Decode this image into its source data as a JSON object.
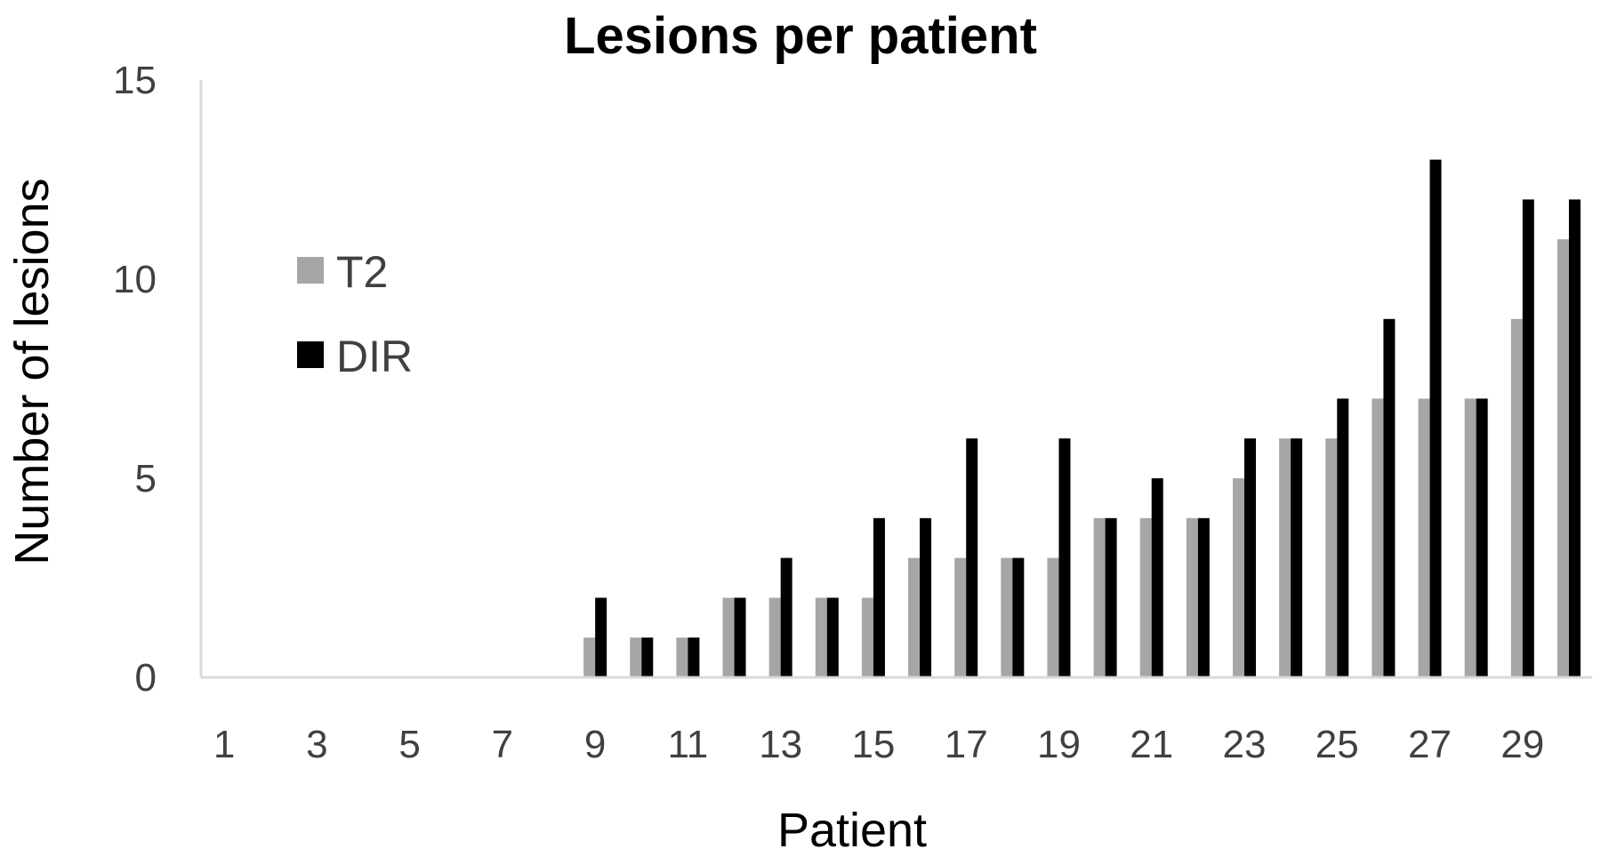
{
  "chart_data": {
    "type": "bar",
    "title": "Lesions per patient",
    "xlabel": "Patient",
    "ylabel": "Number of lesions",
    "ylim": [
      0,
      15
    ],
    "yticks": [
      "0",
      "5",
      "10",
      "15"
    ],
    "xtick_labels": [
      "1",
      "3",
      "5",
      "7",
      "9",
      "11",
      "13",
      "15",
      "17",
      "19",
      "21",
      "23",
      "25",
      "27",
      "29"
    ],
    "categories": [
      "1",
      "2",
      "3",
      "4",
      "5",
      "6",
      "7",
      "8",
      "9",
      "10",
      "11",
      "12",
      "13",
      "14",
      "15",
      "16",
      "17",
      "18",
      "19",
      "20",
      "21",
      "22",
      "23",
      "24",
      "25",
      "26",
      "27",
      "28",
      "29",
      "30"
    ],
    "series": [
      {
        "name": "T2",
        "color": "#a6a6a6",
        "values": [
          0,
          0,
          0,
          0,
          0,
          0,
          0,
          0,
          1,
          1,
          1,
          2,
          2,
          2,
          2,
          3,
          3,
          3,
          3,
          4,
          4,
          4,
          5,
          6,
          6,
          7,
          7,
          7,
          9,
          11
        ]
      },
      {
        "name": "DIR",
        "color": "#000000",
        "values": [
          0,
          0,
          0,
          0,
          0,
          0,
          0,
          0,
          2,
          1,
          1,
          2,
          3,
          2,
          4,
          4,
          6,
          3,
          6,
          4,
          5,
          4,
          6,
          6,
          7,
          9,
          13,
          7,
          12,
          12
        ]
      }
    ],
    "legend_position": "left",
    "grid": false
  }
}
